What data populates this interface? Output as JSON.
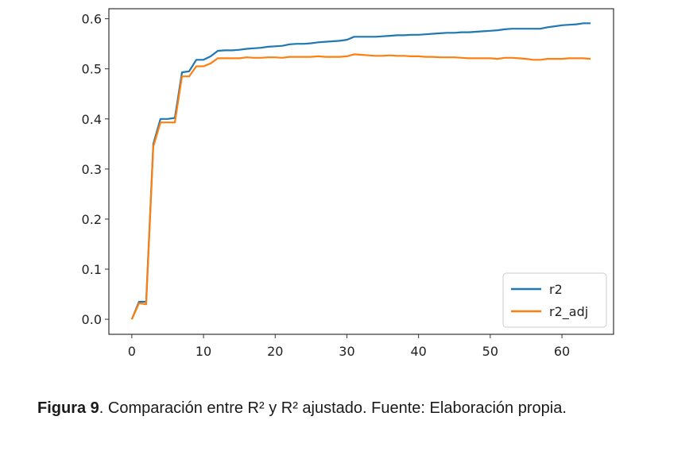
{
  "chart_data": {
    "type": "line",
    "title": "",
    "xlabel": "",
    "ylabel": "",
    "xlim": [
      -3.2,
      67.2
    ],
    "ylim": [
      -0.03,
      0.62
    ],
    "xticks": [
      0,
      10,
      20,
      30,
      40,
      50,
      60
    ],
    "yticks": [
      0.0,
      0.1,
      0.2,
      0.3,
      0.4,
      0.5,
      0.6
    ],
    "grid": false,
    "legend": "bottom-right",
    "series": [
      {
        "name": "r2",
        "color": "#1f77b4",
        "x": [
          0,
          1,
          2,
          3,
          4,
          5,
          6,
          7,
          8,
          9,
          10,
          11,
          12,
          13,
          14,
          15,
          16,
          17,
          18,
          19,
          20,
          21,
          22,
          23,
          24,
          25,
          26,
          27,
          28,
          29,
          30,
          31,
          32,
          33,
          34,
          35,
          36,
          37,
          38,
          39,
          40,
          41,
          42,
          43,
          44,
          45,
          46,
          47,
          48,
          49,
          50,
          51,
          52,
          53,
          54,
          55,
          56,
          57,
          58,
          59,
          60,
          61,
          62,
          63,
          64
        ],
        "y": [
          0.0,
          0.035,
          0.035,
          0.35,
          0.4,
          0.4,
          0.402,
          0.493,
          0.495,
          0.518,
          0.518,
          0.525,
          0.536,
          0.537,
          0.537,
          0.538,
          0.54,
          0.541,
          0.542,
          0.544,
          0.545,
          0.546,
          0.549,
          0.55,
          0.55,
          0.551,
          0.553,
          0.554,
          0.555,
          0.556,
          0.558,
          0.564,
          0.564,
          0.564,
          0.564,
          0.565,
          0.566,
          0.567,
          0.567,
          0.568,
          0.568,
          0.569,
          0.57,
          0.571,
          0.572,
          0.572,
          0.573,
          0.573,
          0.574,
          0.575,
          0.576,
          0.577,
          0.579,
          0.58,
          0.58,
          0.58,
          0.58,
          0.58,
          0.583,
          0.585,
          0.587,
          0.588,
          0.589,
          0.591,
          0.591
        ]
      },
      {
        "name": "r2_adj",
        "color": "#ff7f0e",
        "x": [
          0,
          1,
          2,
          3,
          4,
          5,
          6,
          7,
          8,
          9,
          10,
          11,
          12,
          13,
          14,
          15,
          16,
          17,
          18,
          19,
          20,
          21,
          22,
          23,
          24,
          25,
          26,
          27,
          28,
          29,
          30,
          31,
          32,
          33,
          34,
          35,
          36,
          37,
          38,
          39,
          40,
          41,
          42,
          43,
          44,
          45,
          46,
          47,
          48,
          49,
          50,
          51,
          52,
          53,
          54,
          55,
          56,
          57,
          58,
          59,
          60,
          61,
          62,
          63,
          64
        ],
        "y": [
          0.0,
          0.032,
          0.03,
          0.345,
          0.393,
          0.393,
          0.393,
          0.485,
          0.485,
          0.505,
          0.505,
          0.511,
          0.521,
          0.521,
          0.521,
          0.521,
          0.523,
          0.522,
          0.522,
          0.523,
          0.523,
          0.522,
          0.524,
          0.524,
          0.524,
          0.524,
          0.525,
          0.524,
          0.524,
          0.524,
          0.525,
          0.529,
          0.528,
          0.527,
          0.526,
          0.526,
          0.527,
          0.526,
          0.526,
          0.525,
          0.525,
          0.524,
          0.524,
          0.523,
          0.523,
          0.523,
          0.522,
          0.521,
          0.521,
          0.521,
          0.521,
          0.52,
          0.522,
          0.522,
          0.521,
          0.52,
          0.518,
          0.518,
          0.52,
          0.52,
          0.52,
          0.521,
          0.521,
          0.521,
          0.52
        ]
      }
    ]
  },
  "caption": {
    "label": "Figura 9",
    "text": ". Comparación entre R² y R² ajustado. Fuente: Elaboración propia."
  }
}
